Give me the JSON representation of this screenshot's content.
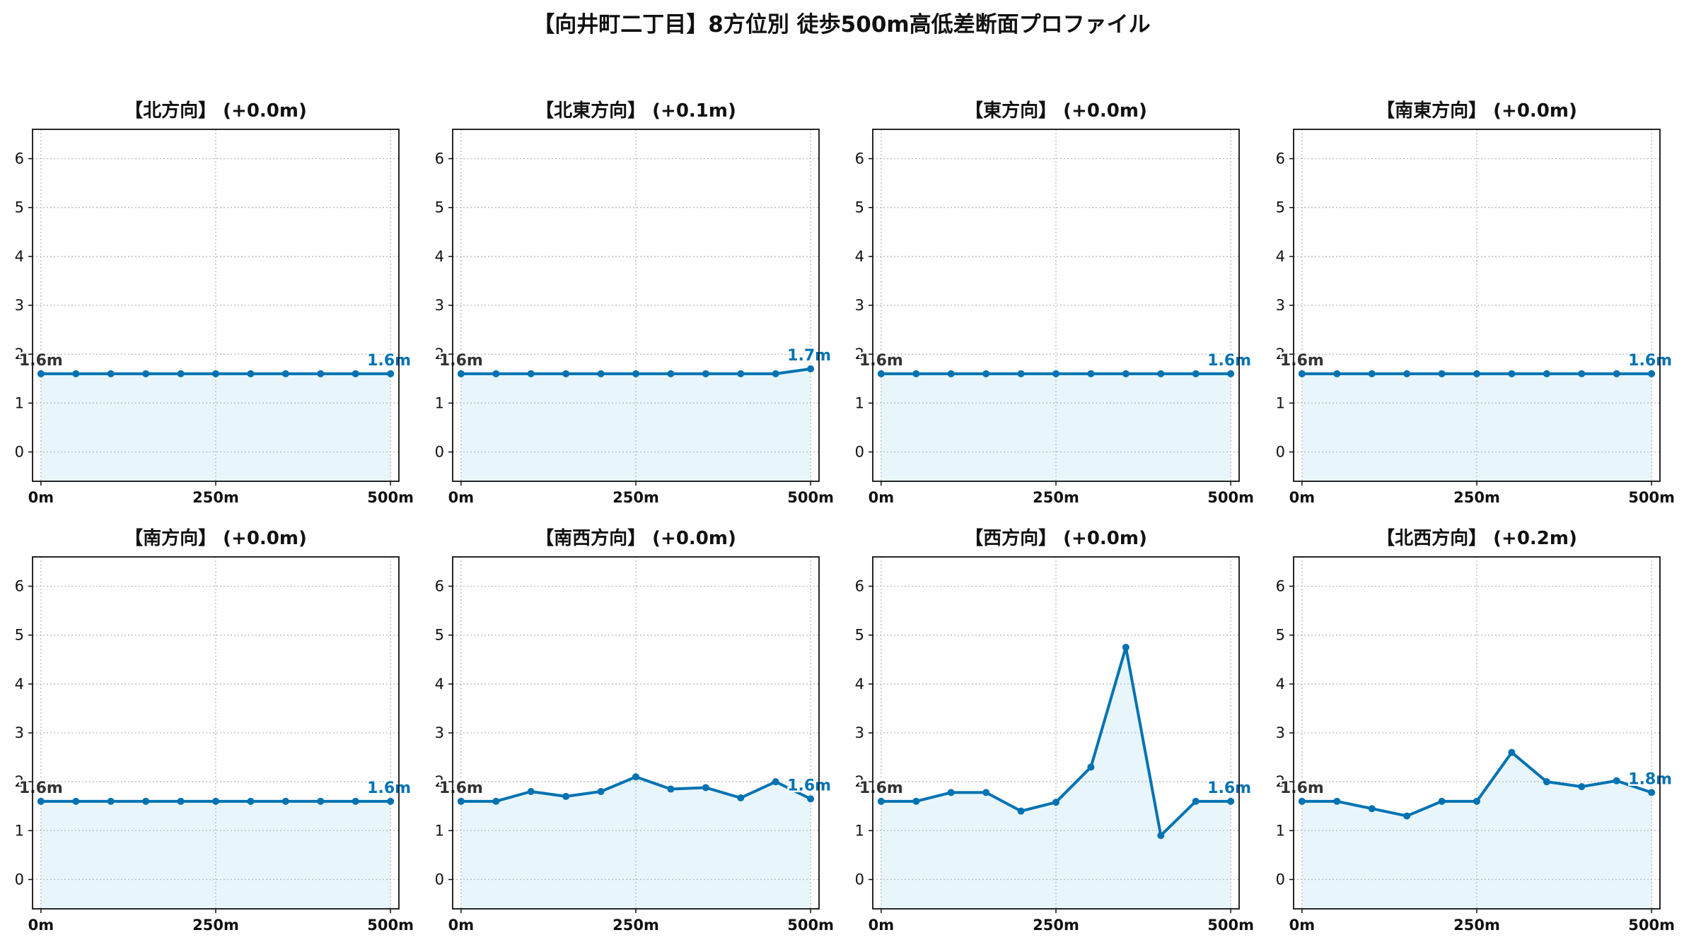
{
  "title": "【向井町二丁目】8方位別 徒歩500m高低差断面プロファイル",
  "colors": {
    "line": "#0072b2",
    "fill": "#e8f6fc",
    "grid": "#bbbbbb",
    "start_label": "#333333",
    "end_label": "#0072b2"
  },
  "chart_data": [
    {
      "type": "line",
      "title": "【北方向】 (+0.0m)",
      "x": [
        0,
        50,
        100,
        150,
        200,
        250,
        300,
        350,
        400,
        450,
        500
      ],
      "y": [
        1.6,
        1.6,
        1.6,
        1.6,
        1.6,
        1.6,
        1.6,
        1.6,
        1.6,
        1.6,
        1.6
      ],
      "start_label": "1.6m",
      "end_label": "1.6m",
      "xticks": [
        "0m",
        "250m",
        "500m"
      ],
      "yticks": [
        "0",
        "1",
        "2",
        "3",
        "4",
        "5",
        "6"
      ],
      "ylim": [
        -0.6,
        6.6
      ],
      "xlim": [
        -12,
        512
      ],
      "grid": true
    },
    {
      "type": "line",
      "title": "【北東方向】 (+0.1m)",
      "x": [
        0,
        50,
        100,
        150,
        200,
        250,
        300,
        350,
        400,
        450,
        500
      ],
      "y": [
        1.6,
        1.6,
        1.6,
        1.6,
        1.6,
        1.6,
        1.6,
        1.6,
        1.6,
        1.6,
        1.7
      ],
      "start_label": "1.6m",
      "end_label": "1.7m",
      "xticks": [
        "0m",
        "250m",
        "500m"
      ],
      "yticks": [
        "0",
        "1",
        "2",
        "3",
        "4",
        "5",
        "6"
      ],
      "ylim": [
        -0.6,
        6.6
      ],
      "xlim": [
        -12,
        512
      ],
      "grid": true
    },
    {
      "type": "line",
      "title": "【東方向】 (+0.0m)",
      "x": [
        0,
        50,
        100,
        150,
        200,
        250,
        300,
        350,
        400,
        450,
        500
      ],
      "y": [
        1.6,
        1.6,
        1.6,
        1.6,
        1.6,
        1.6,
        1.6,
        1.6,
        1.6,
        1.6,
        1.6
      ],
      "start_label": "1.6m",
      "end_label": "1.6m",
      "xticks": [
        "0m",
        "250m",
        "500m"
      ],
      "yticks": [
        "0",
        "1",
        "2",
        "3",
        "4",
        "5",
        "6"
      ],
      "ylim": [
        -0.6,
        6.6
      ],
      "xlim": [
        -12,
        512
      ],
      "grid": true
    },
    {
      "type": "line",
      "title": "【南東方向】 (+0.0m)",
      "x": [
        0,
        50,
        100,
        150,
        200,
        250,
        300,
        350,
        400,
        450,
        500
      ],
      "y": [
        1.6,
        1.6,
        1.6,
        1.6,
        1.6,
        1.6,
        1.6,
        1.6,
        1.6,
        1.6,
        1.6
      ],
      "start_label": "1.6m",
      "end_label": "1.6m",
      "xticks": [
        "0m",
        "250m",
        "500m"
      ],
      "yticks": [
        "0",
        "1",
        "2",
        "3",
        "4",
        "5",
        "6"
      ],
      "ylim": [
        -0.6,
        6.6
      ],
      "xlim": [
        -12,
        512
      ],
      "grid": true
    },
    {
      "type": "line",
      "title": "【南方向】 (+0.0m)",
      "x": [
        0,
        50,
        100,
        150,
        200,
        250,
        300,
        350,
        400,
        450,
        500
      ],
      "y": [
        1.6,
        1.6,
        1.6,
        1.6,
        1.6,
        1.6,
        1.6,
        1.6,
        1.6,
        1.6,
        1.6
      ],
      "start_label": "1.6m",
      "end_label": "1.6m",
      "xticks": [
        "0m",
        "250m",
        "500m"
      ],
      "yticks": [
        "0",
        "1",
        "2",
        "3",
        "4",
        "5",
        "6"
      ],
      "ylim": [
        -0.6,
        6.6
      ],
      "xlim": [
        -12,
        512
      ],
      "grid": true
    },
    {
      "type": "line",
      "title": "【南西方向】 (+0.0m)",
      "x": [
        0,
        50,
        100,
        150,
        200,
        250,
        300,
        350,
        400,
        450,
        500
      ],
      "y": [
        1.6,
        1.6,
        1.8,
        1.7,
        1.8,
        2.1,
        1.85,
        1.88,
        1.67,
        2.0,
        1.65
      ],
      "start_label": "1.6m",
      "end_label": "1.6m",
      "xticks": [
        "0m",
        "250m",
        "500m"
      ],
      "yticks": [
        "0",
        "1",
        "2",
        "3",
        "4",
        "5",
        "6"
      ],
      "ylim": [
        -0.6,
        6.6
      ],
      "xlim": [
        -12,
        512
      ],
      "grid": true
    },
    {
      "type": "line",
      "title": "【西方向】 (+0.0m)",
      "x": [
        0,
        50,
        100,
        150,
        200,
        250,
        300,
        350,
        400,
        450,
        500
      ],
      "y": [
        1.6,
        1.6,
        1.78,
        1.78,
        1.4,
        1.58,
        2.3,
        4.75,
        0.9,
        1.6,
        1.6
      ],
      "start_label": "1.6m",
      "end_label": "1.6m",
      "xticks": [
        "0m",
        "250m",
        "500m"
      ],
      "yticks": [
        "0",
        "1",
        "2",
        "3",
        "4",
        "5",
        "6"
      ],
      "ylim": [
        -0.6,
        6.6
      ],
      "xlim": [
        -12,
        512
      ],
      "grid": true
    },
    {
      "type": "line",
      "title": "【北西方向】 (+0.2m)",
      "x": [
        0,
        50,
        100,
        150,
        200,
        250,
        300,
        350,
        400,
        450,
        500
      ],
      "y": [
        1.6,
        1.6,
        1.45,
        1.3,
        1.6,
        1.6,
        2.6,
        2.0,
        1.9,
        2.02,
        1.78
      ],
      "start_label": "1.6m",
      "end_label": "1.8m",
      "xticks": [
        "0m",
        "250m",
        "500m"
      ],
      "yticks": [
        "0",
        "1",
        "2",
        "3",
        "4",
        "5",
        "6"
      ],
      "ylim": [
        -0.6,
        6.6
      ],
      "xlim": [
        -12,
        512
      ],
      "grid": true
    }
  ]
}
